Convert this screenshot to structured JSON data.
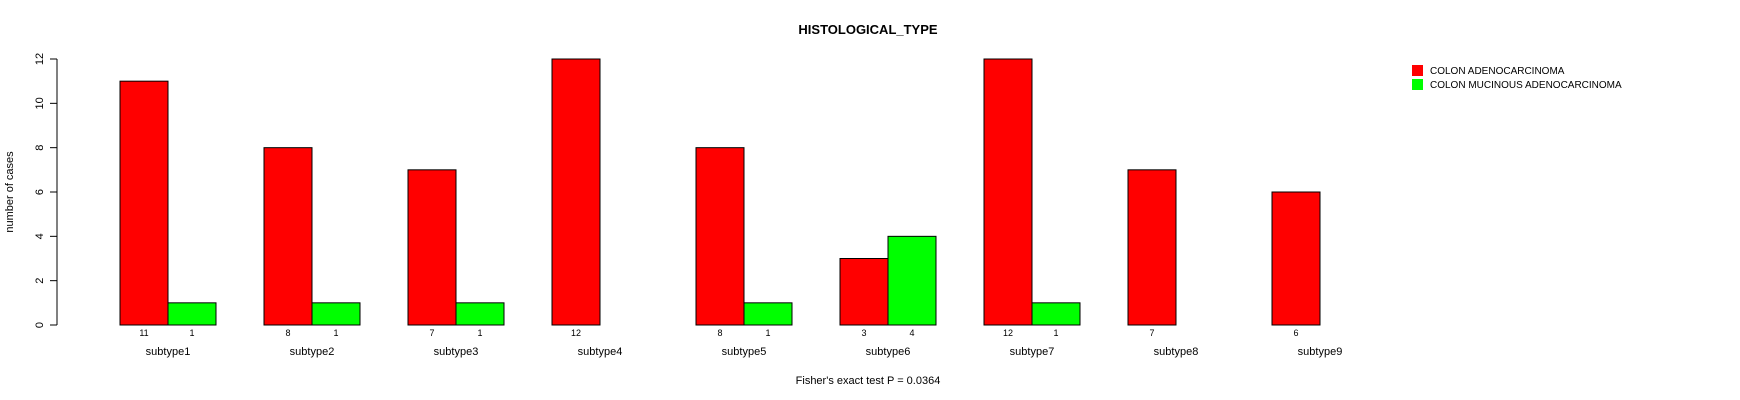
{
  "chart_data": {
    "type": "bar",
    "title": "HISTOLOGICAL_TYPE",
    "xlabel": "Fisher's exact test P = 0.0364",
    "ylabel": "number of cases",
    "ylim": [
      0,
      12
    ],
    "yticks": [
      0,
      2,
      4,
      6,
      8,
      10,
      12
    ],
    "categories": [
      "subtype1",
      "subtype2",
      "subtype3",
      "subtype4",
      "subtype5",
      "subtype6",
      "subtype7",
      "subtype8",
      "subtype9"
    ],
    "series": [
      {
        "name": "COLON ADENOCARCINOMA",
        "color": "#ff0000",
        "values": [
          11,
          8,
          7,
          12,
          8,
          3,
          12,
          7,
          6
        ]
      },
      {
        "name": "COLON MUCINOUS ADENOCARCINOMA",
        "color": "#00ff00",
        "values": [
          1,
          1,
          1,
          0,
          1,
          4,
          1,
          0,
          0
        ]
      }
    ],
    "legend_position": "top-right",
    "grid": false
  }
}
